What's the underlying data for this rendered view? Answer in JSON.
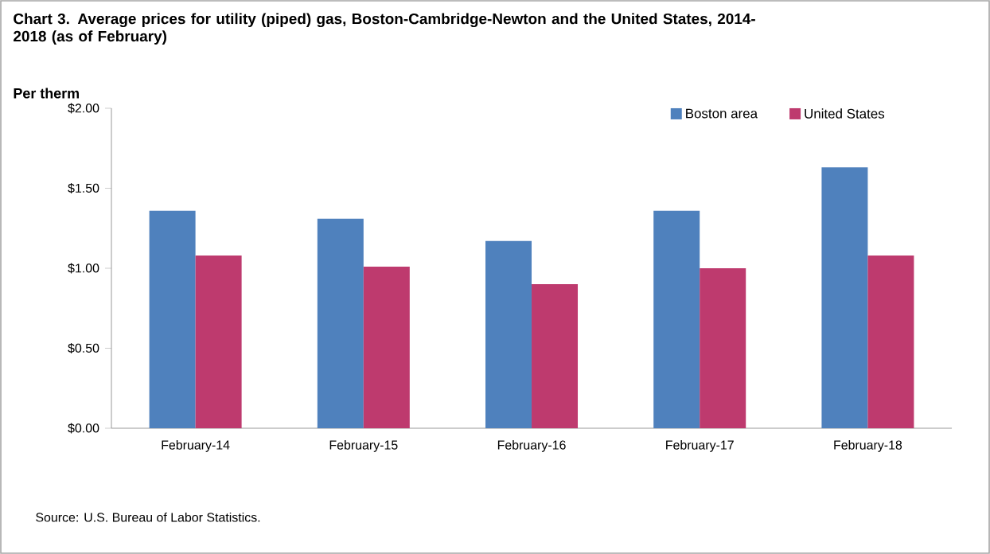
{
  "chart_data": {
    "type": "bar",
    "title": "Chart 3. Average prices for utility (piped) gas, Boston-Cambridge-Newton and the United  States, 2014-2018 (as of February)",
    "ylabel": "Per therm",
    "categories": [
      "February-14",
      "February-15",
      "February-16",
      "February-17",
      "February-18"
    ],
    "series": [
      {
        "name": "Boston area",
        "color": "#4f81bd",
        "values": [
          1.36,
          1.31,
          1.17,
          1.36,
          1.63
        ]
      },
      {
        "name": "United States",
        "color": "#be3a6e",
        "values": [
          1.08,
          1.01,
          0.9,
          1.0,
          1.08
        ]
      }
    ],
    "ylim": [
      0,
      2
    ],
    "yticks": [
      {
        "value": 0,
        "label": "$0.00"
      },
      {
        "value": 0.5,
        "label": "$0.50"
      },
      {
        "value": 1,
        "label": "$1.00"
      },
      {
        "value": 1.5,
        "label": "$1.50"
      },
      {
        "value": 2,
        "label": "$2.00"
      }
    ],
    "legend": "top right",
    "grid": false,
    "annotations": [
      "Source: U.S. Bureau of Labor Statistics."
    ]
  }
}
